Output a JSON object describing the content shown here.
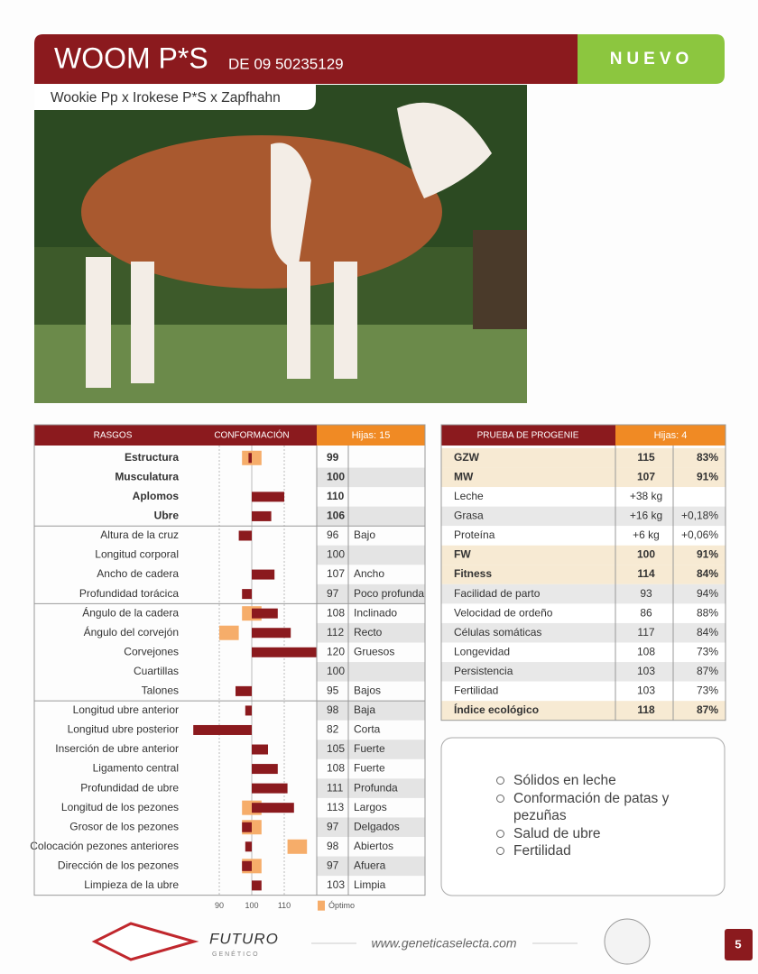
{
  "header": {
    "name": "WOOM P*S",
    "id": "DE 09 50235129",
    "badge": "NUEVO",
    "pedigree": "Wookie Pp x Irokese P*S x Zapfhahn"
  },
  "conformation": {
    "headers": [
      "RASGOS",
      "CONFORMACIÓN",
      "Hijas: 15"
    ],
    "xlim": [
      80,
      120
    ],
    "xticks": [
      90,
      100,
      110
    ],
    "legend": "Óptimo",
    "groups": [
      [
        {
          "trait": "Estructura",
          "value": 99,
          "bold": true,
          "optimal": [
            97,
            103
          ]
        },
        {
          "trait": "Musculatura",
          "value": 100,
          "bold": true
        },
        {
          "trait": "Aplomos",
          "value": 110,
          "bold": true
        },
        {
          "trait": "Ubre",
          "value": 106,
          "bold": true
        }
      ],
      [
        {
          "trait": "Altura de la cruz",
          "value": 96,
          "desc": "Bajo"
        },
        {
          "trait": "Longitud corporal",
          "value": 100
        },
        {
          "trait": "Ancho de cadera",
          "value": 107,
          "desc": "Ancho"
        },
        {
          "trait": "Profundidad torácica",
          "value": 97,
          "desc": "Poco profunda"
        }
      ],
      [
        {
          "trait": "Ángulo de la cadera",
          "value": 108,
          "desc": "Inclinado",
          "optimal": [
            97,
            103
          ]
        },
        {
          "trait": "Ángulo del corvejón",
          "value": 112,
          "desc": "Recto",
          "optimal": [
            90,
            96
          ]
        },
        {
          "trait": "Corvejones",
          "value": 120,
          "desc": "Gruesos"
        },
        {
          "trait": "Cuartillas",
          "value": 100
        },
        {
          "trait": "Talones",
          "value": 95,
          "desc": "Bajos"
        }
      ],
      [
        {
          "trait": "Longitud ubre anterior",
          "value": 98,
          "desc": "Baja"
        },
        {
          "trait": "Longitud ubre posterior",
          "value": 82,
          "desc": "Corta"
        },
        {
          "trait": "Inserción de ubre anterior",
          "value": 105,
          "desc": "Fuerte"
        },
        {
          "trait": "Ligamento central",
          "value": 108,
          "desc": "Fuerte"
        },
        {
          "trait": "Profundidad de ubre",
          "value": 111,
          "desc": "Profunda"
        },
        {
          "trait": "Longitud de los pezones",
          "value": 113,
          "desc": "Largos",
          "optimal": [
            97,
            103
          ]
        },
        {
          "trait": "Grosor de los pezones",
          "value": 97,
          "desc": "Delgados",
          "optimal": [
            97,
            103
          ]
        },
        {
          "trait": "Colocación pezones anteriores",
          "value": 98,
          "desc": "Abiertos",
          "optimal": [
            111,
            117
          ]
        },
        {
          "trait": "Dirección de los pezones",
          "value": 97,
          "desc": "Afuera",
          "optimal": [
            97,
            103
          ]
        },
        {
          "trait": "Limpieza de la ubre",
          "value": 103,
          "desc": "Limpia"
        }
      ]
    ]
  },
  "progeny": {
    "headers": [
      "PRUEBA DE PROGENIE",
      "Hijas: 4"
    ],
    "rows": [
      {
        "label": "GZW",
        "value": "115",
        "rel": "83%",
        "highlight": true
      },
      {
        "label": "MW",
        "value": "107",
        "rel": "91%",
        "highlight": true
      },
      {
        "label": "Leche",
        "value": "+38 kg"
      },
      {
        "label": "Grasa",
        "value": "+16 kg",
        "rel": "+0,18%"
      },
      {
        "label": "Proteína",
        "value": "+6 kg",
        "rel": "+0,06%"
      },
      {
        "label": "FW",
        "value": "100",
        "rel": "91%",
        "highlight": true
      },
      {
        "label": "Fitness",
        "value": "114",
        "rel": "84%",
        "highlight": true
      },
      {
        "label": "Facilidad de parto",
        "value": "93",
        "rel": "94%"
      },
      {
        "label": "Velocidad de ordeño",
        "value": "86",
        "rel": "88%"
      },
      {
        "label": "Células somáticas",
        "value": "117",
        "rel": "84%"
      },
      {
        "label": "Longevidad",
        "value": "108",
        "rel": "73%"
      },
      {
        "label": "Persistencia",
        "value": "103",
        "rel": "87%"
      },
      {
        "label": "Fertilidad",
        "value": "103",
        "rel": "73%"
      },
      {
        "label": "Índice ecológico",
        "value": "118",
        "rel": "87%",
        "highlight": true
      }
    ]
  },
  "bullets": [
    "Sólidos en leche",
    "Conformación de patas y pezuñas",
    "Salud de ubre",
    "Fertilidad"
  ],
  "footer": {
    "brand": "FUTURO",
    "brand_sub": "GENÉTICO",
    "url": "www.geneticaselecta.com",
    "page": "5"
  }
}
